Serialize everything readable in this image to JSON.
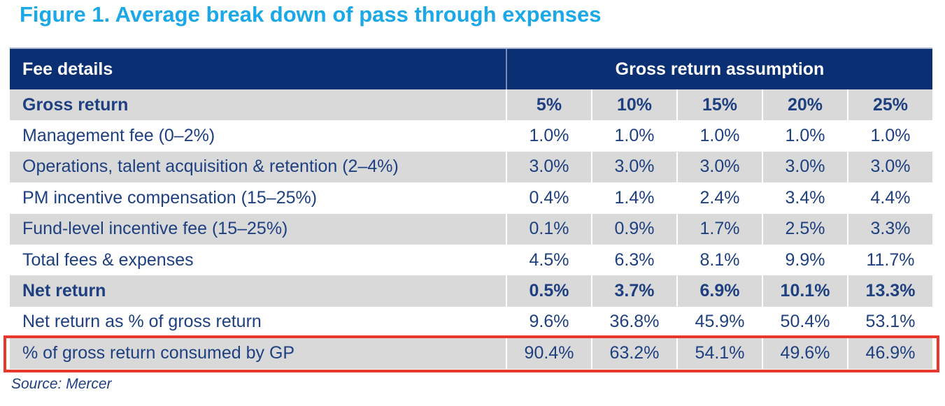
{
  "figure_title": "Figure 1. Average break down of pass through expenses",
  "source_note": "Source: Mercer",
  "colors": {
    "title_blue": "#1ba8e8",
    "header_navy": "#0a2f72",
    "text_navy": "#1e4080",
    "row_shade_gray": "#d9d9d9",
    "highlight_red": "#e8372c",
    "header_text_white": "#ffffff"
  },
  "chart_data": {
    "type": "table",
    "title": "Figure 1. Average break down of pass through expenses",
    "row_header_label": "Fee details",
    "column_group_label": "Gross return assumption",
    "columns": [
      "5%",
      "10%",
      "15%",
      "20%",
      "25%"
    ],
    "rows": [
      {
        "label": "Gross return",
        "values": [
          "5%",
          "10%",
          "15%",
          "20%",
          "25%"
        ],
        "emphasis": true,
        "shaded": true,
        "highlighted": false
      },
      {
        "label": "Management fee (0–2%)",
        "values": [
          "1.0%",
          "1.0%",
          "1.0%",
          "1.0%",
          "1.0%"
        ],
        "emphasis": false,
        "shaded": false,
        "highlighted": false
      },
      {
        "label": "Operations, talent acquisition & retention (2–4%)",
        "values": [
          "3.0%",
          "3.0%",
          "3.0%",
          "3.0%",
          "3.0%"
        ],
        "emphasis": false,
        "shaded": true,
        "highlighted": false
      },
      {
        "label": "PM incentive compensation (15–25%)",
        "values": [
          "0.4%",
          "1.4%",
          "2.4%",
          "3.4%",
          "4.4%"
        ],
        "emphasis": false,
        "shaded": false,
        "highlighted": false
      },
      {
        "label": "Fund-level incentive fee (15–25%)",
        "values": [
          "0.1%",
          "0.9%",
          "1.7%",
          "2.5%",
          "3.3%"
        ],
        "emphasis": false,
        "shaded": true,
        "highlighted": false
      },
      {
        "label": "Total fees & expenses",
        "values": [
          "4.5%",
          "6.3%",
          "8.1%",
          "9.9%",
          "11.7%"
        ],
        "emphasis": false,
        "shaded": false,
        "highlighted": false
      },
      {
        "label": "Net return",
        "values": [
          "0.5%",
          "3.7%",
          "6.9%",
          "10.1%",
          "13.3%"
        ],
        "emphasis": true,
        "shaded": true,
        "highlighted": false
      },
      {
        "label": "Net return as % of gross return",
        "values": [
          "9.6%",
          "36.8%",
          "45.9%",
          "50.4%",
          "53.1%"
        ],
        "emphasis": false,
        "shaded": false,
        "highlighted": false
      },
      {
        "label": "% of gross return consumed by GP",
        "values": [
          "90.4%",
          "63.2%",
          "54.1%",
          "49.6%",
          "46.9%"
        ],
        "emphasis": false,
        "shaded": true,
        "highlighted": true
      }
    ],
    "highlighted_row_index": 8,
    "source": "Mercer"
  }
}
